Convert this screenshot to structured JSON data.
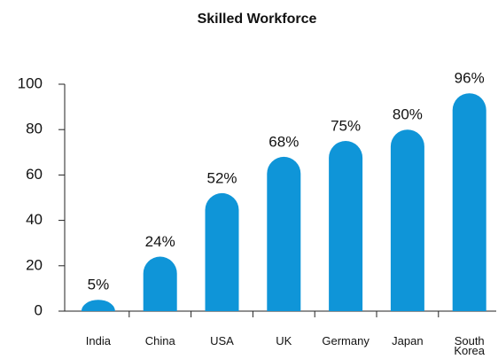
{
  "chart_data": {
    "type": "bar",
    "title": "Skilled Workforce",
    "categories": [
      "India",
      "China",
      "USA",
      "UK",
      "Germany",
      "Japan",
      "South Korea"
    ],
    "values": [
      5,
      24,
      52,
      68,
      75,
      80,
      96
    ],
    "value_labels": [
      "5%",
      "24%",
      "52%",
      "68%",
      "75%",
      "80%",
      "96%"
    ],
    "color": "#0f95d8",
    "ylim": [
      0,
      100
    ],
    "yticks": [
      0,
      20,
      40,
      60,
      80,
      100
    ],
    "grid": false
  }
}
